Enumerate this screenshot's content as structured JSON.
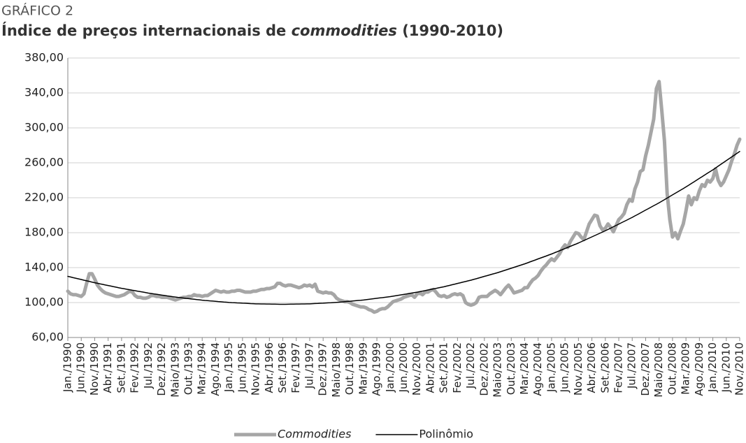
{
  "chart_data": {
    "type": "line",
    "kicker": "GRÁFICO 2",
    "title": [
      "Índice de preços internacionais de ",
      "commodities",
      " (1990-2010)"
    ],
    "categories": [
      "Jan./1990",
      null,
      null,
      null,
      null,
      "Jun./1990",
      null,
      null,
      null,
      null,
      "Nov./1990",
      null,
      null,
      null,
      null,
      "Abr./1991",
      null,
      null,
      null,
      null,
      "Set./1991",
      null,
      null,
      null,
      null,
      "Fev./1992",
      null,
      null,
      null,
      null,
      "Jul./1992",
      null,
      null,
      null,
      null,
      "Dez./1992",
      null,
      null,
      null,
      null,
      "Maio/1993",
      null,
      null,
      null,
      null,
      "Out./1993",
      null,
      null,
      null,
      null,
      "Mar./1994",
      null,
      null,
      null,
      null,
      "Ago./1994",
      null,
      null,
      null,
      null,
      "Jan./1995",
      null,
      null,
      null,
      null,
      "Jun./1995",
      null,
      null,
      null,
      null,
      "Nov./1995",
      null,
      null,
      null,
      null,
      "Abr./1996",
      null,
      null,
      null,
      null,
      "Set./1996",
      null,
      null,
      null,
      null,
      "Fev./1997",
      null,
      null,
      null,
      null,
      "Jul./1997",
      null,
      null,
      null,
      null,
      "Dez./1997",
      null,
      null,
      null,
      null,
      "Maio/1998",
      null,
      null,
      null,
      null,
      "Out./1998",
      null,
      null,
      null,
      null,
      "Mar./1999",
      null,
      null,
      null,
      null,
      "Ago./1999",
      null,
      null,
      null,
      null,
      "Jan./2000",
      null,
      null,
      null,
      null,
      "Jun./2000",
      null,
      null,
      null,
      null,
      "Nov./2000",
      null,
      null,
      null,
      null,
      "Abr./2001",
      null,
      null,
      null,
      null,
      "Set./2001",
      null,
      null,
      null,
      null,
      "Fev./2002",
      null,
      null,
      null,
      null,
      "Jul./2002",
      null,
      null,
      null,
      null,
      "Dez./2002",
      null,
      null,
      null,
      null,
      "Maio/2003",
      null,
      null,
      null,
      null,
      "Out./2003",
      null,
      null,
      null,
      null,
      "Mar./2004",
      null,
      null,
      null,
      null,
      "Ago./2004",
      null,
      null,
      null,
      null,
      "Jan./2005",
      null,
      null,
      null,
      null,
      "Jun./2005",
      null,
      null,
      null,
      null,
      "Nov./2005",
      null,
      null,
      null,
      null,
      "Abr./2006",
      null,
      null,
      null,
      null,
      "Set./2006",
      null,
      null,
      null,
      null,
      "Fev./2007",
      null,
      null,
      null,
      null,
      "Jul./2007",
      null,
      null,
      null,
      null,
      "Dez./2007",
      null,
      null,
      null,
      null,
      "Maio/2008",
      null,
      null,
      null,
      null,
      "Out./2008",
      null,
      null,
      null,
      null,
      "Mar./2009",
      null,
      null,
      null,
      null,
      "Ago./2009",
      null,
      null,
      null,
      null,
      "Jan./2010",
      null,
      null,
      null,
      null,
      "Jun./2010",
      null,
      null,
      null,
      null,
      "Nov./2010"
    ],
    "series": [
      {
        "name": "Commodities",
        "color": "#a6a6a6",
        "width": 5,
        "italic": true,
        "values": [
          113,
          110,
          109,
          109,
          108,
          107,
          110,
          122,
          133,
          133,
          127,
          120,
          116,
          113,
          111,
          110,
          109,
          108,
          107,
          107,
          108,
          109,
          111,
          113,
          112,
          108,
          106,
          106,
          105,
          105,
          106,
          108,
          108,
          107,
          107,
          106,
          106,
          106,
          105,
          104,
          103,
          104,
          105,
          106,
          106,
          107,
          107,
          109,
          108,
          108,
          107,
          108,
          108,
          110,
          112,
          114,
          113,
          112,
          113,
          112,
          112,
          113,
          113,
          114,
          114,
          113,
          112,
          112,
          112,
          113,
          113,
          114,
          115,
          115,
          116,
          116,
          117,
          118,
          122,
          122,
          120,
          119,
          120,
          120,
          119,
          118,
          117,
          118,
          120,
          119,
          120,
          118,
          121,
          113,
          112,
          111,
          112,
          111,
          111,
          109,
          105,
          103,
          102,
          101,
          101,
          100,
          98,
          97,
          96,
          95,
          95,
          94,
          92,
          91,
          89,
          90,
          92,
          93,
          93,
          95,
          98,
          101,
          102,
          103,
          104,
          106,
          107,
          108,
          109,
          106,
          110,
          111,
          109,
          112,
          112,
          114,
          115,
          112,
          108,
          107,
          108,
          106,
          107,
          109,
          110,
          109,
          110,
          108,
          100,
          98,
          97,
          98,
          100,
          106,
          107,
          107,
          107,
          110,
          112,
          114,
          112,
          109,
          113,
          117,
          120,
          116,
          111,
          112,
          113,
          114,
          117,
          117,
          122,
          126,
          128,
          131,
          136,
          140,
          143,
          147,
          150,
          148,
          152,
          156,
          162,
          166,
          163,
          170,
          175,
          180,
          179,
          175,
          172,
          181,
          190,
          195,
          200,
          199,
          188,
          183,
          185,
          190,
          186,
          181,
          188,
          195,
          198,
          202,
          212,
          218,
          216,
          230,
          238,
          250,
          252,
          268,
          280,
          295,
          310,
          345,
          353,
          320,
          285,
          225,
          195,
          175,
          180,
          173,
          182,
          190,
          205,
          222,
          212,
          220,
          218,
          228,
          235,
          233,
          240,
          238,
          242,
          253,
          240,
          234,
          238,
          245,
          252,
          262,
          270,
          280,
          287
        ]
      },
      {
        "name": "Polinômio",
        "color": "#000000",
        "width": 1.5,
        "italic": false,
        "values": [
          130.0,
          129.3,
          128.5,
          127.8,
          127.1,
          126.4,
          125.6,
          124.9,
          124.2,
          123.4,
          122.7,
          122.1,
          121.4,
          120.8,
          120.1,
          119.5,
          118.9,
          118.2,
          117.6,
          116.9,
          116.3,
          115.8,
          115.2,
          114.7,
          114.1,
          113.6,
          113.0,
          112.5,
          112.0,
          111.4,
          110.8,
          110.4,
          109.9,
          109.5,
          109.0,
          108.5,
          108.1,
          107.6,
          107.2,
          106.7,
          106.3,
          105.9,
          105.6,
          105.2,
          104.8,
          104.5,
          104.1,
          103.8,
          103.4,
          103.1,
          102.7,
          102.4,
          102.2,
          101.9,
          101.7,
          101.4,
          101.1,
          100.9,
          100.6,
          100.4,
          100.1,
          99.9,
          99.8,
          99.6,
          99.5,
          99.3,
          99.2,
          99.0,
          98.8,
          98.7,
          98.5,
          98.5,
          98.4,
          98.4,
          98.3,
          98.3,
          98.2,
          98.2,
          98.1,
          98.0,
          98.0,
          98.0,
          98.1,
          98.2,
          98.2,
          98.3,
          98.3,
          98.4,
          98.4,
          98.5,
          98.5,
          98.7,
          98.9,
          99.0,
          99.2,
          99.3,
          99.5,
          99.7,
          99.8,
          100.0,
          100.2,
          100.4,
          100.7,
          101.0,
          101.3,
          101.5,
          101.8,
          102.1,
          102.4,
          102.6,
          102.9,
          103.3,
          103.7,
          104.1,
          104.5,
          104.9,
          105.3,
          105.6,
          106.0,
          106.4,
          106.8,
          107.3,
          107.8,
          108.3,
          108.8,
          109.3,
          109.8,
          110.4,
          110.9,
          111.4,
          111.9,
          112.5,
          113.1,
          113.7,
          114.4,
          115.0,
          115.6,
          116.2,
          116.9,
          117.5,
          118.1,
          118.9,
          119.6,
          120.4,
          121.1,
          121.9,
          122.6,
          123.4,
          124.1,
          124.9,
          125.6,
          126.5,
          127.3,
          128.2,
          129.1,
          130.0,
          130.8,
          131.7,
          132.6,
          133.4,
          134.3,
          135.3,
          136.3,
          137.3,
          138.3,
          139.3,
          140.3,
          141.3,
          142.3,
          143.3,
          144.3,
          145.4,
          146.6,
          147.7,
          148.8,
          150.0,
          151.1,
          152.2,
          153.3,
          154.5,
          155.6,
          156.9,
          158.1,
          159.4,
          160.6,
          161.9,
          163.2,
          164.4,
          165.7,
          166.9,
          168.2,
          169.6,
          171.0,
          172.4,
          173.8,
          175.2,
          176.6,
          178.0,
          179.4,
          180.8,
          182.2,
          183.7,
          185.2,
          186.8,
          188.3,
          189.8,
          191.4,
          192.9,
          194.4,
          196.0,
          197.5,
          199.2,
          200.8,
          202.5,
          204.2,
          205.9,
          207.5,
          209.2,
          210.9,
          212.5,
          214.2,
          216.0,
          217.8,
          219.6,
          221.5,
          223.3,
          225.1,
          226.9,
          228.7,
          230.5,
          232.4,
          234.3,
          236.3,
          238.2,
          240.2,
          242.2,
          244.1,
          246.1,
          248.1,
          250.0,
          251.9,
          254.0,
          256.2,
          258.3,
          260.4,
          262.5,
          264.6,
          266.7,
          268.8,
          270.9,
          273.0
        ]
      }
    ],
    "ylim": [
      60,
      380
    ],
    "yticks": [
      {
        "value": 60,
        "label": "60,00"
      },
      {
        "value": 100,
        "label": "100,00"
      },
      {
        "value": 140,
        "label": "140,00"
      },
      {
        "value": 180,
        "label": "180,00"
      },
      {
        "value": 220,
        "label": "220,00"
      },
      {
        "value": 260,
        "label": "260,00"
      },
      {
        "value": 300,
        "label": "300,00"
      },
      {
        "value": 340,
        "label": "340,00"
      },
      {
        "value": 380,
        "label": "380,00"
      }
    ],
    "grid": true,
    "legend": "bottom"
  }
}
